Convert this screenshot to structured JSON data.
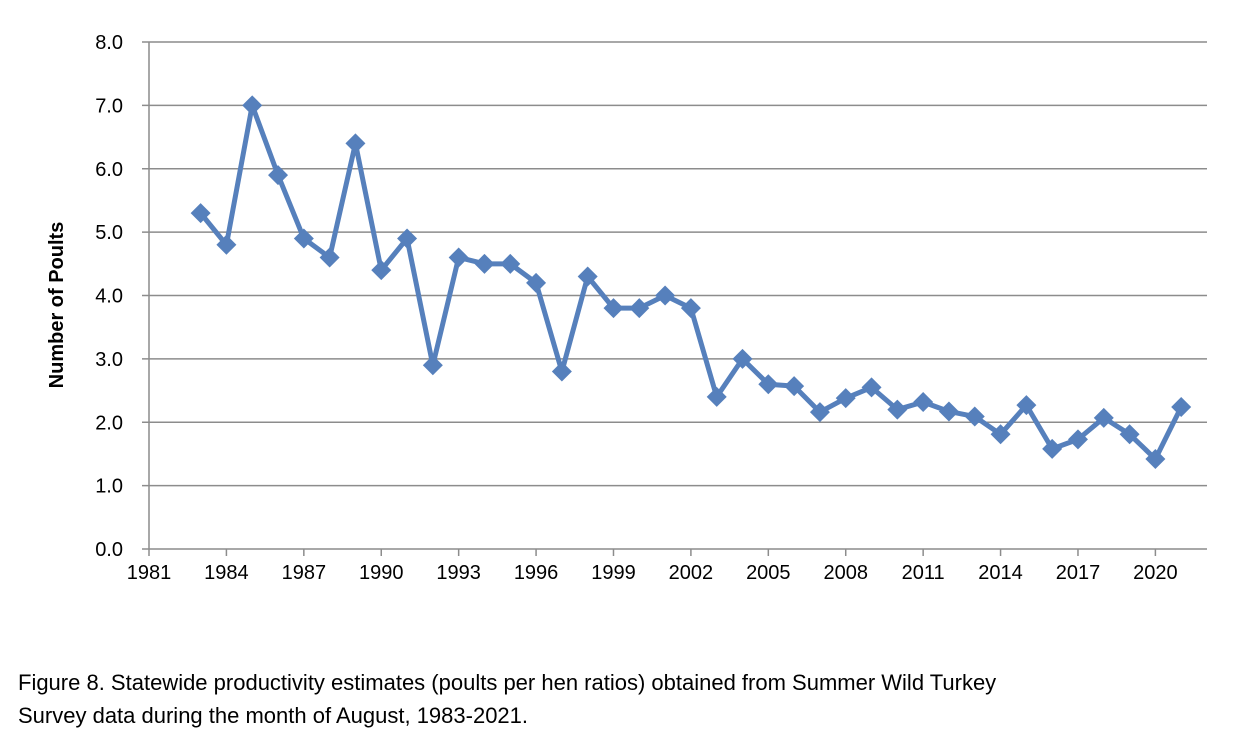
{
  "chart_data": {
    "type": "line",
    "title": "",
    "xlabel": "",
    "ylabel": "Number of Poults",
    "xlim": [
      1981,
      2022
    ],
    "ylim": [
      0,
      8
    ],
    "x_ticks": [
      1981,
      1984,
      1987,
      1990,
      1993,
      1996,
      1999,
      2002,
      2005,
      2008,
      2011,
      2014,
      2017,
      2020
    ],
    "y_ticks": [
      "0.0",
      "1.0",
      "2.0",
      "3.0",
      "4.0",
      "5.0",
      "6.0",
      "7.0",
      "8.0"
    ],
    "grid": "horizontal",
    "color": "#5680bc",
    "marker": "diamond",
    "x": [
      1983,
      1984,
      1985,
      1986,
      1987,
      1988,
      1989,
      1990,
      1991,
      1992,
      1993,
      1994,
      1995,
      1996,
      1997,
      1998,
      1999,
      2000,
      2001,
      2002,
      2003,
      2004,
      2005,
      2006,
      2007,
      2008,
      2009,
      2010,
      2011,
      2012,
      2013,
      2014,
      2015,
      2016,
      2017,
      2018,
      2019,
      2020,
      2021
    ],
    "values": [
      5.3,
      4.8,
      7.0,
      5.9,
      4.9,
      4.6,
      6.4,
      4.4,
      4.9,
      2.9,
      4.6,
      4.5,
      4.5,
      4.2,
      2.8,
      4.3,
      3.8,
      3.8,
      4.0,
      3.8,
      2.4,
      3.0,
      2.6,
      2.57,
      2.16,
      2.38,
      2.55,
      2.2,
      2.32,
      2.17,
      2.09,
      1.81,
      2.27,
      1.58,
      1.73,
      2.07,
      1.81,
      1.42,
      2.24
    ]
  },
  "caption": {
    "line1": "Figure 8.  Statewide productivity estimates (poults per hen ratios) obtained from Summer Wild Turkey",
    "line2": "Survey data during the month of August, 1983-2021."
  }
}
